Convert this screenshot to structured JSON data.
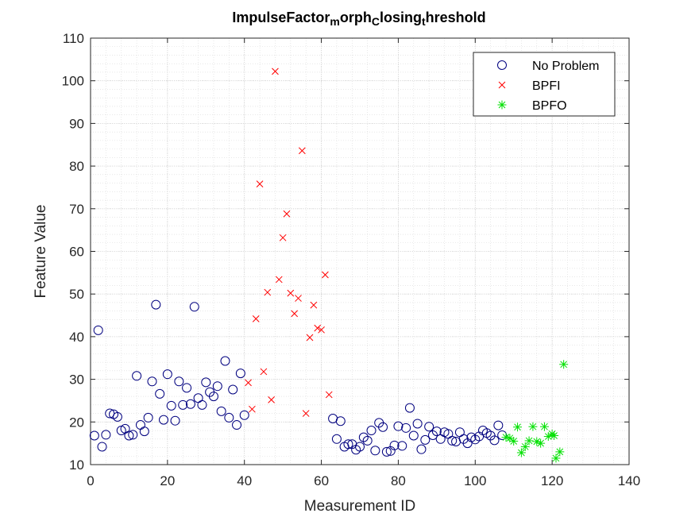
{
  "chart_data": {
    "type": "scatter",
    "title": {
      "segments": [
        {
          "text": "ImpulseFactor",
          "sub": false
        },
        {
          "text": "m",
          "sub": true
        },
        {
          "text": "orph",
          "sub": false
        },
        {
          "text": "C",
          "sub": true
        },
        {
          "text": "losing",
          "sub": false
        },
        {
          "text": "t",
          "sub": true
        },
        {
          "text": "hreshold",
          "sub": false
        }
      ]
    },
    "xlabel": "Measurement ID",
    "ylabel": "Feature Value",
    "xlim": [
      0,
      140
    ],
    "ylim": [
      10,
      110
    ],
    "xticks": [
      0,
      20,
      40,
      60,
      80,
      100,
      120,
      140
    ],
    "yticks": [
      10,
      20,
      30,
      40,
      50,
      60,
      70,
      80,
      90,
      100,
      110
    ],
    "grid": true,
    "minor_grid": true,
    "legend_position": "top-right",
    "series": [
      {
        "name": "No Problem",
        "marker": "circle",
        "color": "#00007f",
        "points": [
          [
            1,
            16.8
          ],
          [
            2,
            41.5
          ],
          [
            3,
            14.2
          ],
          [
            4,
            17
          ],
          [
            5,
            22
          ],
          [
            6,
            21.8
          ],
          [
            7,
            21.2
          ],
          [
            8,
            18
          ],
          [
            9,
            18.4
          ],
          [
            10,
            16.8
          ],
          [
            11,
            17
          ],
          [
            12,
            30.8
          ],
          [
            13,
            19.3
          ],
          [
            14,
            17.8
          ],
          [
            15,
            21
          ],
          [
            16,
            29.5
          ],
          [
            17,
            47.5
          ],
          [
            18,
            26.6
          ],
          [
            19,
            20.5
          ],
          [
            20,
            31.2
          ],
          [
            21,
            23.8
          ],
          [
            22,
            20.3
          ],
          [
            23,
            29.5
          ],
          [
            24,
            24
          ],
          [
            25,
            28
          ],
          [
            26,
            24.2
          ],
          [
            27,
            47
          ],
          [
            28,
            25.6
          ],
          [
            29,
            24
          ],
          [
            30,
            29.3
          ],
          [
            31,
            27
          ],
          [
            32,
            26
          ],
          [
            33,
            28.4
          ],
          [
            34,
            22.5
          ],
          [
            35,
            34.3
          ],
          [
            36,
            21
          ],
          [
            37,
            27.6
          ],
          [
            38,
            19.3
          ],
          [
            39,
            31.4
          ],
          [
            40,
            21.6
          ],
          [
            63,
            20.8
          ],
          [
            64,
            16
          ],
          [
            65,
            20.2
          ],
          [
            66,
            14.2
          ],
          [
            67,
            14.8
          ],
          [
            68,
            14.8
          ],
          [
            69,
            13.5
          ],
          [
            70,
            14.2
          ],
          [
            71,
            16.4
          ],
          [
            72,
            15.6
          ],
          [
            73,
            18
          ],
          [
            74,
            13.3
          ],
          [
            75,
            19.8
          ],
          [
            76,
            18.8
          ],
          [
            77,
            13
          ],
          [
            78,
            13.2
          ],
          [
            79,
            14.5
          ],
          [
            80,
            19
          ],
          [
            81,
            14.4
          ],
          [
            82,
            18.6
          ],
          [
            83,
            23.3
          ],
          [
            84,
            16.8
          ],
          [
            85,
            19.6
          ],
          [
            86,
            13.6
          ],
          [
            87,
            15.8
          ],
          [
            88,
            18.9
          ],
          [
            89,
            16.9
          ],
          [
            90,
            17.8
          ],
          [
            91,
            16
          ],
          [
            92,
            17.6
          ],
          [
            93,
            17.2
          ],
          [
            94,
            15.6
          ],
          [
            95,
            15.4
          ],
          [
            96,
            17.6
          ],
          [
            97,
            16
          ],
          [
            98,
            15
          ],
          [
            99,
            16.4
          ],
          [
            100,
            15.9
          ],
          [
            101,
            16.6
          ],
          [
            102,
            18
          ],
          [
            103,
            17.4
          ],
          [
            104,
            16.8
          ],
          [
            105,
            15.7
          ],
          [
            106,
            19.2
          ],
          [
            107,
            16.9
          ]
        ]
      },
      {
        "name": "BPFI",
        "marker": "x",
        "color": "#ff0000",
        "points": [
          [
            41,
            29.2
          ],
          [
            42,
            23
          ],
          [
            43,
            44.2
          ],
          [
            44,
            75.8
          ],
          [
            45,
            31.8
          ],
          [
            46,
            50.4
          ],
          [
            47,
            25.2
          ],
          [
            48,
            102.2
          ],
          [
            49,
            53.4
          ],
          [
            50,
            63.2
          ],
          [
            51,
            68.8
          ],
          [
            52,
            50.2
          ],
          [
            53,
            45.4
          ],
          [
            54,
            49
          ],
          [
            55,
            83.6
          ],
          [
            56,
            22
          ],
          [
            57,
            39.8
          ],
          [
            58,
            47.4
          ],
          [
            59,
            42
          ],
          [
            60,
            41.6
          ],
          [
            61,
            54.5
          ],
          [
            62,
            26.4
          ]
        ]
      },
      {
        "name": "BPFO",
        "marker": "asterisk",
        "color": "#00e000",
        "points": [
          [
            108,
            16.4
          ],
          [
            109,
            16.2
          ],
          [
            110,
            15.5
          ],
          [
            111,
            18.8
          ],
          [
            112,
            12.8
          ],
          [
            113,
            14.2
          ],
          [
            114,
            15.6
          ],
          [
            115,
            18.9
          ],
          [
            116,
            15.4
          ],
          [
            117,
            15
          ],
          [
            118,
            18.9
          ],
          [
            119,
            16.6
          ],
          [
            120,
            17.2
          ],
          [
            120.5,
            16.8
          ],
          [
            121,
            11.5
          ],
          [
            122,
            13
          ],
          [
            123,
            33.5
          ]
        ]
      }
    ]
  }
}
